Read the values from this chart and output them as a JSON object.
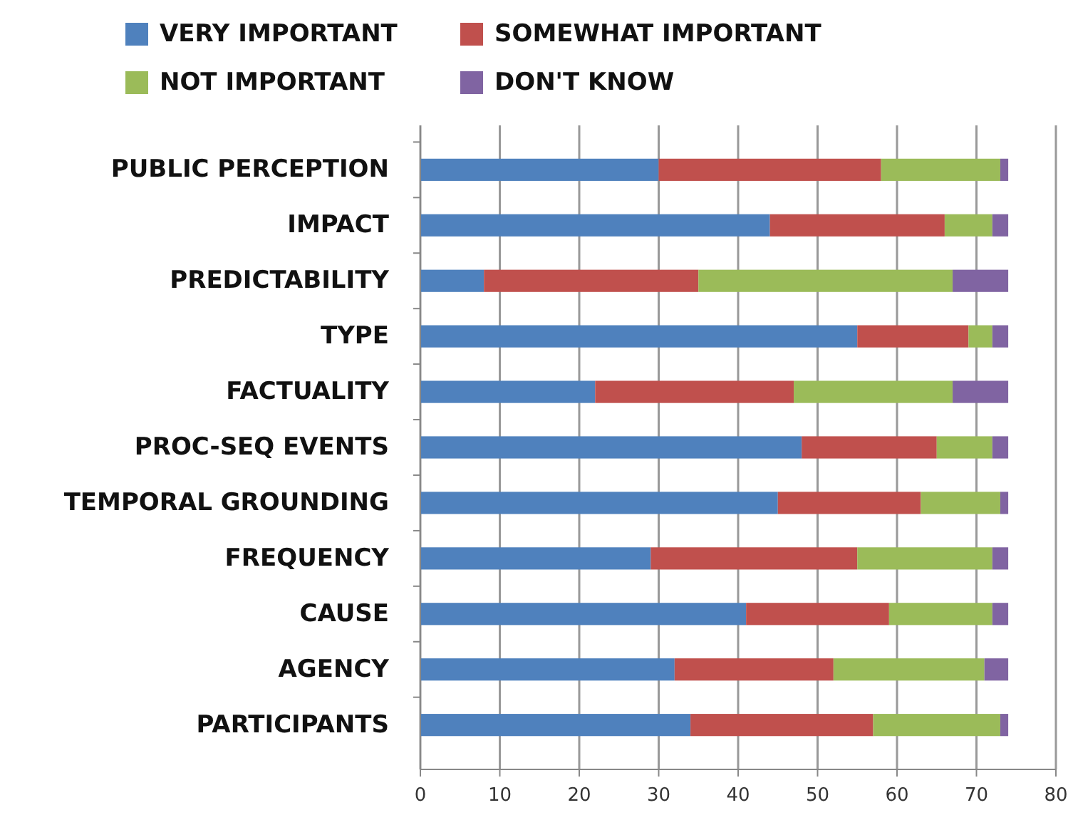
{
  "chart_data": {
    "type": "bar",
    "orientation": "horizontal",
    "stacked": true,
    "categories": [
      "PUBLIC PERCEPTION",
      "IMPACT",
      "PREDICTABILITY",
      "TYPE",
      "FACTUALITY",
      "PROC-SEQ EVENTS",
      "TEMPORAL GROUNDING",
      "FREQUENCY",
      "CAUSE",
      "AGENCY",
      "PARTICIPANTS"
    ],
    "series": [
      {
        "name": "VERY IMPORTANT",
        "color": "#4f81bd",
        "values": [
          30,
          44,
          8,
          55,
          22,
          48,
          45,
          29,
          41,
          32,
          34
        ]
      },
      {
        "name": "SOMEWHAT IMPORTANT",
        "color": "#c0504d",
        "values": [
          28,
          22,
          27,
          14,
          25,
          17,
          18,
          26,
          18,
          20,
          23
        ]
      },
      {
        "name": "NOT IMPORTANT",
        "color": "#9bbb59",
        "values": [
          15,
          6,
          32,
          3,
          20,
          7,
          10,
          17,
          13,
          19,
          16
        ]
      },
      {
        "name": "DON'T KNOW",
        "color": "#8064a2",
        "values": [
          1,
          2,
          7,
          2,
          7,
          2,
          1,
          2,
          2,
          3,
          1
        ]
      }
    ],
    "xlim": [
      0,
      80
    ],
    "xticks": [
      0,
      10,
      20,
      30,
      40,
      50,
      60,
      70,
      80
    ],
    "grid": "x",
    "legend": "top"
  }
}
